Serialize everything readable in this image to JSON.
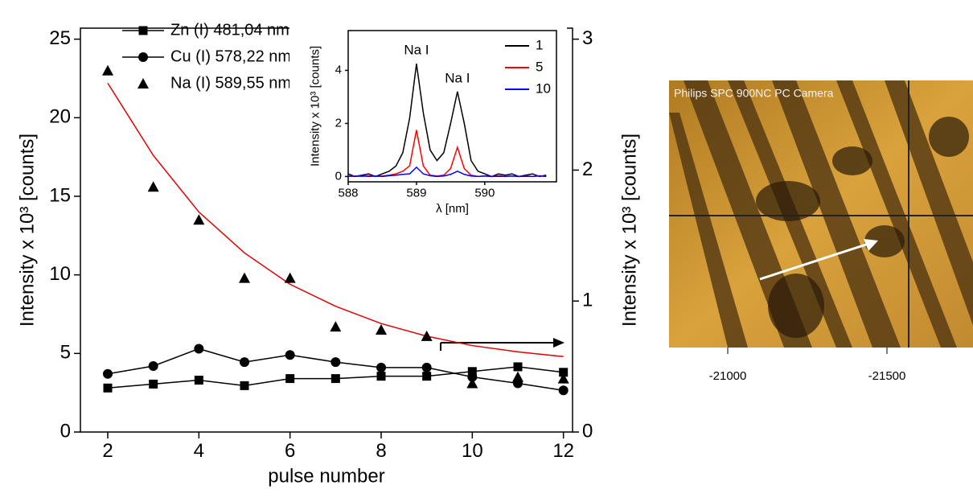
{
  "chart_data": [
    {
      "type": "line",
      "xlabel": "pulse number",
      "ylabel": "Intensity x 10³ [counts]",
      "y2label": "Intensity x 10³ [counts]",
      "x": [
        2,
        3,
        4,
        5,
        6,
        7,
        8,
        9,
        10,
        11,
        12
      ],
      "xlim": [
        1.4,
        12.2
      ],
      "xticks": [
        2,
        4,
        6,
        8,
        10,
        12
      ],
      "ylim": [
        0,
        25.7
      ],
      "yticks": [
        0,
        5,
        10,
        15,
        20,
        25
      ],
      "y2lim": [
        0,
        3.084
      ],
      "y2ticks": [
        0,
        1,
        2,
        3
      ],
      "legend": "upper left",
      "series": [
        {
          "name": "Zn (I) 481,04 nm",
          "color": "#000000",
          "marker": "square",
          "line": true,
          "values": [
            2.8,
            3.05,
            3.3,
            2.95,
            3.4,
            3.4,
            3.55,
            3.55,
            3.85,
            4.15,
            3.8
          ]
        },
        {
          "name": "Cu (I) 578,22 nm",
          "color": "#000000",
          "marker": "circle",
          "line": true,
          "values": [
            3.7,
            4.2,
            5.3,
            4.45,
            4.9,
            4.45,
            4.1,
            4.1,
            3.5,
            3.1,
            2.65
          ]
        },
        {
          "name": "Na (I) 589,55 nm",
          "color": "#000000",
          "marker": "triangle",
          "line": false,
          "values": [
            23.0,
            15.6,
            13.5,
            9.8,
            9.8,
            6.7,
            6.5,
            6.1,
            3.1,
            3.5,
            3.4
          ]
        }
      ],
      "fit": {
        "color": "#e00000",
        "x": [
          2,
          3,
          4,
          5,
          6,
          7,
          8,
          9,
          10,
          11,
          12
        ],
        "values": [
          22.2,
          17.6,
          14.0,
          11.4,
          9.4,
          8.0,
          6.9,
          6.1,
          5.5,
          5.1,
          4.8
        ]
      }
    },
    {
      "type": "line",
      "xlabel": "λ [nm]",
      "ylabel": "Intensity x 10³ [counts]",
      "x": [
        588.0,
        588.1,
        588.2,
        588.3,
        588.4,
        588.5,
        588.6,
        588.7,
        588.8,
        588.9,
        589.0,
        589.1,
        589.2,
        589.3,
        589.4,
        589.5,
        589.6,
        589.7,
        589.8,
        589.9,
        590.0,
        590.1,
        590.2,
        590.3,
        590.4,
        590.5,
        590.6,
        590.7,
        590.8,
        590.9
      ],
      "xlim": [
        588,
        591.05
      ],
      "xticks": [
        588,
        589,
        590
      ],
      "ylim": [
        -0.2,
        5.5
      ],
      "yticks": [
        0,
        2,
        4
      ],
      "legend": "upper right",
      "annotations": [
        "Na I",
        "Na I"
      ],
      "series": [
        {
          "name": "1",
          "color": "#000000",
          "marker": "none",
          "line": true,
          "values": [
            0.1,
            0.0,
            0.05,
            0.1,
            0.0,
            0.1,
            0.2,
            0.4,
            0.9,
            2.2,
            4.25,
            2.4,
            1.0,
            0.6,
            0.9,
            2.0,
            3.2,
            2.0,
            0.6,
            0.2,
            0.1,
            0.0,
            0.1,
            0.05,
            0.1,
            0.0,
            0.05,
            0.1,
            0.0,
            0.05
          ]
        },
        {
          "name": "5",
          "color": "#ff0000",
          "marker": "none",
          "line": true,
          "values": [
            0.0,
            0.02,
            0.0,
            0.03,
            0.0,
            0.02,
            0.05,
            0.1,
            0.2,
            0.4,
            1.75,
            0.4,
            0.05,
            0.02,
            0.05,
            0.3,
            1.1,
            0.3,
            0.05,
            0.0,
            0.02,
            0.0,
            0.03,
            0.0,
            0.02,
            0.0,
            0.02,
            0.0,
            0.03,
            0.0
          ]
        },
        {
          "name": "10",
          "color": "#0000ff",
          "marker": "none",
          "line": true,
          "values": [
            0.02,
            0.0,
            0.03,
            0.0,
            0.02,
            0.0,
            0.03,
            0.05,
            0.08,
            0.1,
            0.35,
            0.1,
            0.03,
            0.0,
            0.02,
            0.08,
            0.2,
            0.08,
            0.02,
            0.0,
            0.02,
            0.0,
            0.01,
            0.0,
            0.02,
            0.0,
            0.01,
            0.0,
            0.02,
            0.0
          ]
        }
      ]
    }
  ],
  "photo": {
    "caption": "Philips SPC 900NC PC Camera",
    "ticks": [
      "-21000",
      "-21500"
    ]
  }
}
